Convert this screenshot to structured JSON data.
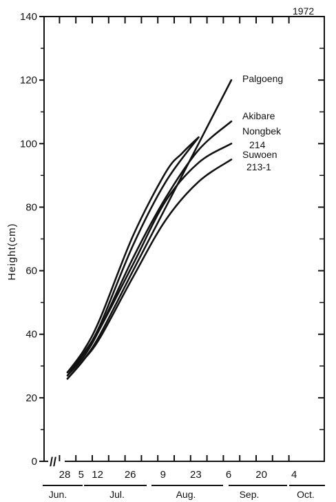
{
  "chart_data": {
    "type": "line",
    "year": "1972",
    "ylabel": "Height(cm)",
    "ylim": [
      0,
      140
    ],
    "yticks": [
      0,
      20,
      40,
      60,
      80,
      100,
      120,
      140
    ],
    "date_ticks": [
      "28",
      "5",
      "12",
      "26",
      "9",
      "23",
      "6",
      "20",
      "4"
    ],
    "months": [
      "Jun.",
      "Jul.",
      "Aug.",
      "Sep.",
      "Oct."
    ],
    "axis_break": "//",
    "series": [
      {
        "name": "Palgoeng",
        "points": [
          [
            0,
            26
          ],
          [
            7,
            32
          ],
          [
            14,
            40
          ],
          [
            28,
            60
          ],
          [
            42,
            80
          ],
          [
            56,
            100
          ],
          [
            70,
            120
          ]
        ]
      },
      {
        "name": "Akibare",
        "points": [
          [
            0,
            27
          ],
          [
            7,
            33
          ],
          [
            14,
            42
          ],
          [
            28,
            64
          ],
          [
            42,
            83
          ],
          [
            56,
            98
          ],
          [
            70,
            107
          ]
        ]
      },
      {
        "name": "Nongbek",
        "points": [
          [
            0,
            27
          ],
          [
            7,
            34
          ],
          [
            14,
            43
          ],
          [
            28,
            68
          ],
          [
            42,
            88
          ],
          [
            56,
            102
          ]
        ]
      },
      {
        "name": "214",
        "points": [
          [
            0,
            28
          ],
          [
            7,
            34
          ],
          [
            14,
            42
          ],
          [
            28,
            62
          ],
          [
            42,
            82
          ],
          [
            56,
            94
          ],
          [
            70,
            100
          ]
        ]
      },
      {
        "name": "Suwoen",
        "points": [
          [
            0,
            28
          ],
          [
            7,
            35
          ],
          [
            14,
            45
          ],
          [
            28,
            71
          ],
          [
            42,
            91
          ],
          [
            49,
            97
          ],
          [
            56,
            102
          ]
        ]
      },
      {
        "name": "213-1",
        "points": [
          [
            0,
            26
          ],
          [
            7,
            32
          ],
          [
            14,
            39
          ],
          [
            28,
            58
          ],
          [
            42,
            76
          ],
          [
            56,
            88
          ],
          [
            70,
            95
          ]
        ]
      }
    ]
  }
}
